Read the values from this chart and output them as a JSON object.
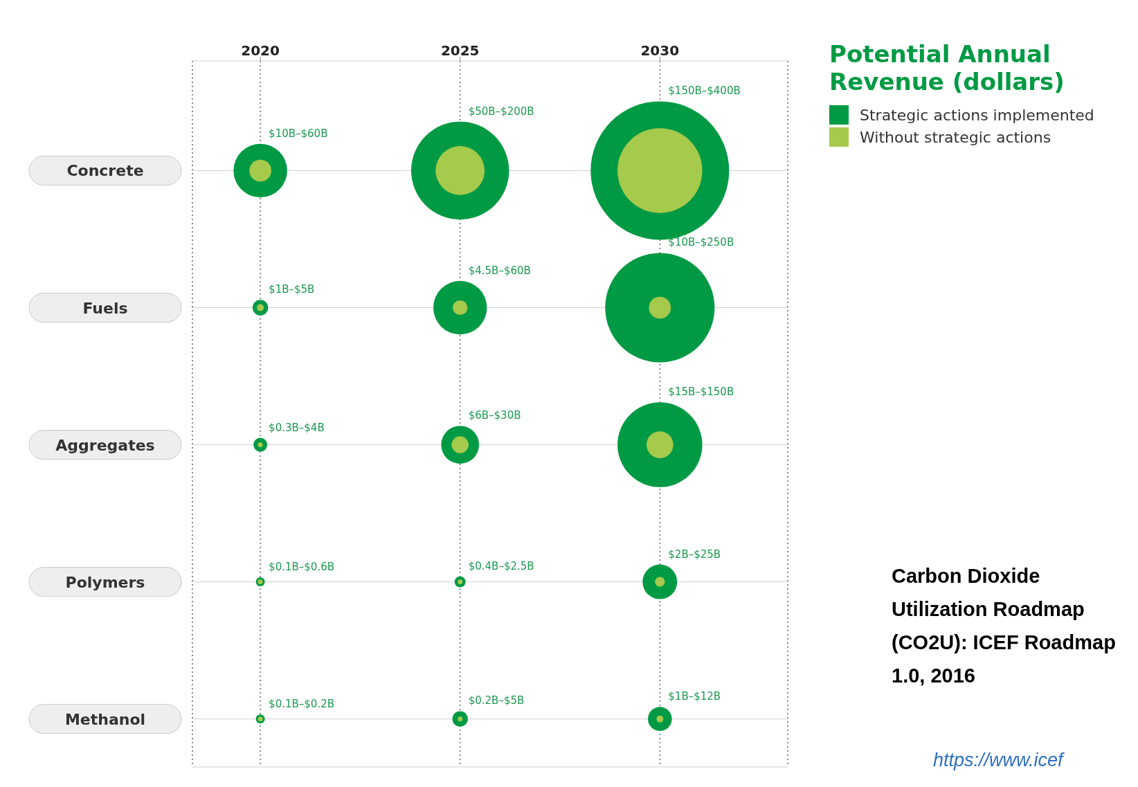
{
  "chart_data": {
    "type": "bubble",
    "orientation": "horizontal",
    "categories": [
      "Concrete",
      "Fuels",
      "Aggregates",
      "Polymers",
      "Methanol"
    ],
    "xlim": [
      2018.3,
      2033.2
    ],
    "xticks": [
      2020,
      2025,
      2030
    ],
    "grid": true,
    "legend": "top right",
    "legend_title": "Potential Annual Revenue (dollars)",
    "series": [
      {
        "name": "Strategic actions implemented",
        "color": "#009a44",
        "values": [
          2020,
          2020,
          2020,
          2020,
          2020
        ],
        "sizes": [
          0.15,
          0.0125,
          0.01,
          null,
          null
        ],
        "value_labels": [
          "$10B–$60B",
          "$1B–$5B",
          "$0.3B–$4B",
          "$0.1B–$0.6B",
          "$0.1B–$0.2B"
        ]
      },
      {
        "name": "Without strategic actions",
        "color": "#a6ca4c",
        "values": [
          2020,
          2020,
          2020,
          2020,
          2020
        ],
        "sizes": [
          0.025,
          0.0025,
          0.00075,
          null,
          null
        ]
      },
      {
        "color": "#009a44",
        "values": [
          2025,
          2025,
          2025,
          2025,
          2025
        ],
        "sizes": [
          0.5,
          0.15,
          0.075,
          0.00625,
          0.0125
        ],
        "value_labels": [
          "$50B–$200B",
          "$4.5B–$60B",
          "$6B–$30B",
          "$0.4B–$2.5B",
          "$0.2B–$5B"
        ]
      },
      {
        "color": "#a6ca4c",
        "values": [
          2025,
          2025,
          2025,
          2025,
          2025
        ],
        "sizes": [
          0.125,
          0.01125,
          0.015,
          0.001,
          null
        ]
      },
      {
        "color": "#009a44",
        "values": [
          2030,
          2030,
          2030,
          2030,
          2030
        ],
        "sizes": [
          1,
          0.625,
          0.375,
          0.0625,
          0.03
        ],
        "value_labels": [
          "$150B–$400B",
          "$10B–$250B",
          "$15B–$150B",
          "$2B–$25B",
          "$1B–$12B"
        ]
      },
      {
        "color": "#a6ca4c",
        "values": [
          2030,
          2030,
          2030,
          2030,
          2030
        ],
        "sizes": [
          0.375,
          0.025,
          0.0375,
          0.005,
          0.0025
        ]
      }
    ],
    "annotations": [
      "Carbon Dioxide Utilization Roadmap (CO2U): ICEF Roadmap 1.0, 2016",
      "https://www.icef"
    ]
  }
}
